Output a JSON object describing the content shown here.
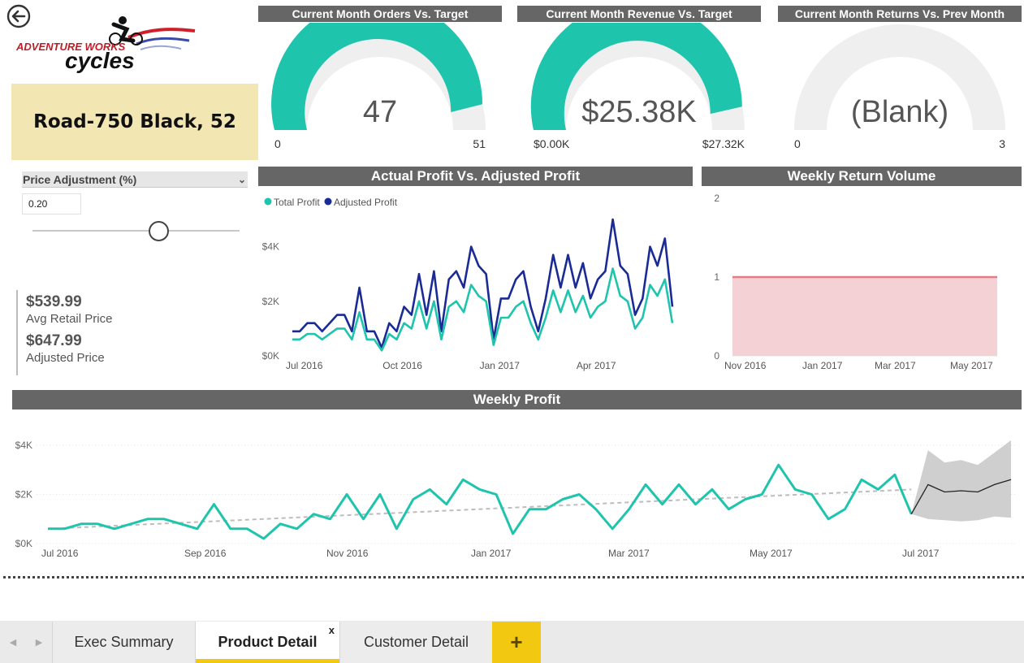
{
  "brand": {
    "line1": "ADVENTURE WORKS",
    "line2": "cycles"
  },
  "product": {
    "name": "Road-750 Black, 52"
  },
  "slicer": {
    "title": "Price Adjustment (%)",
    "value": "0.20",
    "level": 0.6
  },
  "kpis": {
    "avg_retail_price": "$539.99",
    "avg_retail_label": "Avg Retail Price",
    "adjusted_price": "$647.99",
    "adjusted_label": "Adjusted Price"
  },
  "gauges": [
    {
      "title": "Current Month Orders Vs. Target",
      "value_label": "47",
      "min_label": "0",
      "max_label": "51",
      "value": 47,
      "max": 51,
      "color": "#1fc4ad"
    },
    {
      "title": "Current Month Revenue Vs. Target",
      "value_label": "$25.38K",
      "min_label": "$0.00K",
      "max_label": "$27.32K",
      "value": 25.38,
      "max": 27.32,
      "color": "#1fc4ad"
    },
    {
      "title": "Current Month Returns Vs. Prev Month",
      "value_label": "(Blank)",
      "min_label": "0",
      "max_label": "3",
      "value": 0,
      "max": 3,
      "color": "#1fc4ad"
    }
  ],
  "colors": {
    "teal": "#1fc4ad",
    "navy": "#1a2b96",
    "return_fill": "#f4d1d5",
    "return_line": "#e47c87",
    "forecast_band": "#cfcfcf",
    "trend": "#bdbdbd"
  },
  "chart_data": [
    {
      "type": "line",
      "title": "Actual Profit Vs. Adjusted Profit",
      "x_ticks": [
        "Jul 2016",
        "Oct 2016",
        "Jan 2017",
        "Apr 2017"
      ],
      "y_ticks": [
        "$0K",
        "$2K",
        "$4K"
      ],
      "ylim": [
        0,
        5000
      ],
      "legend_position": "top-left",
      "series": [
        {
          "name": "Total Profit",
          "color": "#1fc4ad",
          "values": [
            600,
            600,
            800,
            800,
            600,
            800,
            1000,
            1000,
            600,
            1600,
            600,
            600,
            200,
            800,
            600,
            1200,
            1000,
            2000,
            1000,
            2000,
            600,
            1800,
            2000,
            1600,
            2600,
            2200,
            2000,
            400,
            1400,
            1400,
            1800,
            2000,
            1200,
            600,
            1400,
            2400,
            1600,
            2400,
            1600,
            2200,
            1400,
            1800,
            2000,
            3200,
            2200,
            2000,
            1000,
            1400,
            2600,
            2200,
            2800,
            1200
          ]
        },
        {
          "name": "Adjusted Profit",
          "color": "#1a2b96",
          "values": [
            900,
            900,
            1200,
            1200,
            900,
            1200,
            1500,
            1500,
            900,
            2500,
            900,
            900,
            300,
            1200,
            900,
            1800,
            1500,
            3000,
            1500,
            3100,
            900,
            2800,
            3100,
            2500,
            4000,
            3300,
            3000,
            600,
            2100,
            2100,
            2800,
            3100,
            1800,
            900,
            2100,
            3700,
            2500,
            3700,
            2500,
            3400,
            2100,
            2800,
            3100,
            5000,
            3300,
            3000,
            1500,
            2100,
            4000,
            3300,
            4300,
            1800
          ]
        }
      ]
    },
    {
      "type": "area",
      "title": "Weekly Return Volume",
      "x_ticks": [
        "Nov 2016",
        "Jan 2017",
        "Mar 2017",
        "May 2017"
      ],
      "y_ticks": [
        "0",
        "1",
        "2"
      ],
      "ylim": [
        0,
        2
      ],
      "series": [
        {
          "values": [
            1,
            1
          ]
        }
      ]
    },
    {
      "type": "line",
      "title": "Weekly Profit",
      "x_ticks": [
        "Jul 2016",
        "Sep 2016",
        "Nov 2016",
        "Jan 2017",
        "Mar 2017",
        "May 2017",
        "Jul 2017"
      ],
      "y_ticks": [
        "$0K",
        "$2K",
        "$4K"
      ],
      "ylim": [
        0,
        4000
      ],
      "series": [
        {
          "color": "#1fc4ad",
          "values": [
            600,
            600,
            800,
            800,
            600,
            800,
            1000,
            1000,
            800,
            600,
            1600,
            600,
            600,
            200,
            800,
            600,
            1200,
            1000,
            2000,
            1000,
            2000,
            600,
            1800,
            2200,
            1600,
            2600,
            2200,
            2000,
            400,
            1400,
            1400,
            1800,
            2000,
            1400,
            600,
            1400,
            2400,
            1600,
            2400,
            1600,
            2200,
            1400,
            1800,
            2000,
            3200,
            2200,
            2000,
            1000,
            1400,
            2600,
            2200,
            2800,
            1200
          ]
        },
        {
          "forecast": [
            1200,
            2400,
            2100,
            2150,
            2100,
            2400,
            2600
          ],
          "forecast_upper": [
            1200,
            3800,
            3300,
            3400,
            3200,
            3700,
            4200
          ],
          "forecast_lower": [
            1200,
            1000,
            950,
            900,
            950,
            1100,
            1050
          ]
        }
      ],
      "trend": [
        600,
        2200
      ]
    }
  ],
  "tabs": [
    {
      "label": "Exec Summary"
    },
    {
      "label": "Product Detail",
      "close": "x"
    },
    {
      "label": "Customer Detail"
    }
  ],
  "add_tab_label": "+"
}
